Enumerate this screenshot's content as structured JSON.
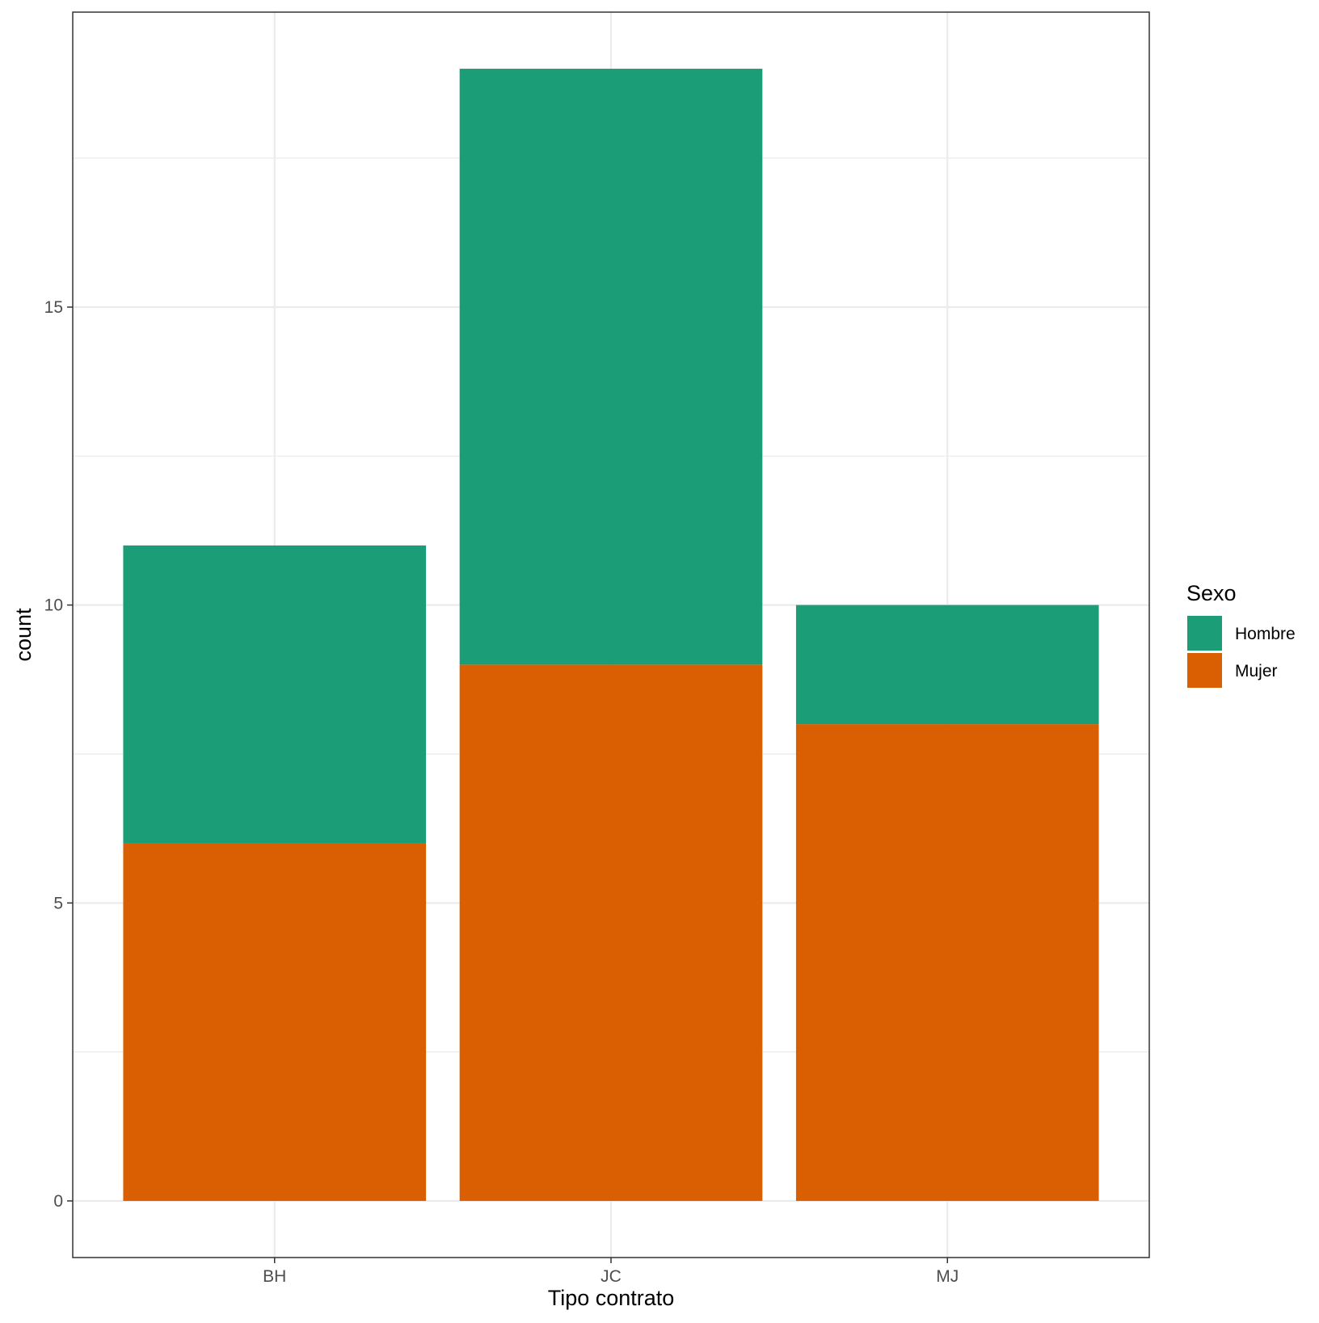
{
  "chart_data": {
    "type": "bar",
    "stacked": true,
    "categories": [
      "BH",
      "JC",
      "MJ"
    ],
    "series": [
      {
        "name": "Hombre",
        "values": [
          5,
          10,
          2
        ],
        "color": "#1b9e77"
      },
      {
        "name": "Mujer",
        "values": [
          6,
          9,
          8
        ],
        "color": "#d95f02"
      }
    ],
    "stack_order_bottom_to_top": [
      "Mujer",
      "Hombre"
    ],
    "xlabel": "Tipo contrato",
    "ylabel": "count",
    "ylim": [
      -0.95,
      19.95
    ],
    "yticks": [
      0,
      5,
      10,
      15
    ],
    "ytick_labels": [
      "0",
      "5",
      "10",
      "15"
    ],
    "grid": true,
    "legend": {
      "title": "Sexo",
      "position": "right"
    },
    "theme": {
      "panel_border": "#333333",
      "grid_color": "#ebebeb"
    }
  }
}
